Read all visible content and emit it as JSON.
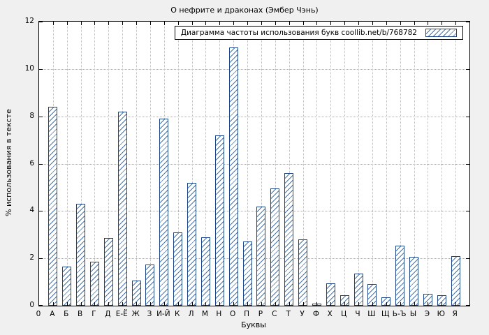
{
  "chart_data": {
    "type": "bar",
    "title": "О нефрите и драконах (Эмбер Чэнь)",
    "legend": "Диаграмма частоты использования букв coollib.net/b/768782",
    "xlabel": "Буквы",
    "ylabel": "% использования в тексте",
    "origin_tick": "0",
    "ylim": [
      0,
      12
    ],
    "yticks": [
      0,
      2,
      4,
      6,
      8,
      10,
      12
    ],
    "grid": true,
    "legend_position": "top-right",
    "categories": [
      "А",
      "Б",
      "В",
      "Г",
      "Д",
      "Е-Ё",
      "Ж",
      "З",
      "И-Й",
      "К",
      "Л",
      "М",
      "Н",
      "О",
      "П",
      "Р",
      "С",
      "Т",
      "У",
      "Ф",
      "Х",
      "Ц",
      "Ч",
      "Ш",
      "Щ",
      "Ь-Ъ",
      "Ы",
      "Э",
      "Ю",
      "Я"
    ],
    "values": [
      8.4,
      1.65,
      4.3,
      1.85,
      2.85,
      8.2,
      1.05,
      1.75,
      7.9,
      3.1,
      5.2,
      2.9,
      7.2,
      10.9,
      2.7,
      4.2,
      4.95,
      5.6,
      2.8,
      0.1,
      0.95,
      0.45,
      1.35,
      0.9,
      0.35,
      2.55,
      2.05,
      0.5,
      0.45,
      2.1
    ],
    "colors": {
      "bar_border": "#1c4587",
      "bar_hatch": "#4a74a8",
      "bar_fill": "#ffffff",
      "grid": "#a8a8a8",
      "axis": "#000000",
      "background": "#f0f0f0",
      "plot_background": "#ffffff"
    }
  }
}
